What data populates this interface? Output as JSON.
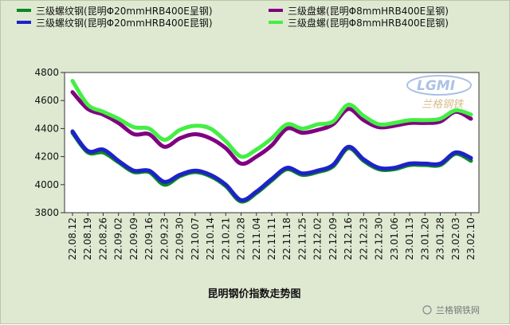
{
  "chart_data": {
    "type": "line",
    "title": "昆明钢价指数走势图",
    "ylim": [
      3800,
      4800
    ],
    "yticks": [
      3800,
      4000,
      4200,
      4400,
      4600,
      4800
    ],
    "grid": false,
    "legend_position": "top",
    "categories": [
      "22.08.12",
      "22.08.19",
      "22.08.26",
      "22.09.02",
      "22.09.09",
      "22.09.16",
      "22.09.23",
      "22.09.30",
      "22.10.07",
      "22.10.14",
      "22.10.21",
      "22.10.28",
      "22.11.04",
      "22.11.11",
      "22.11.18",
      "22.11.25",
      "22.12.02",
      "22.12.09",
      "22.12.16",
      "22.12.23",
      "22.12.30",
      "23.01.06",
      "23.01.13",
      "23.01.20",
      "23.01.28",
      "23.02.03",
      "23.02.10"
    ],
    "series": [
      {
        "name": "三级螺纹钢(昆明Φ20mmHRB400E呈钢)",
        "color": "#0a8a1e",
        "values": [
          4370,
          4230,
          4230,
          4160,
          4090,
          4090,
          4000,
          4060,
          4090,
          4060,
          3990,
          3880,
          3940,
          4030,
          4110,
          4070,
          4090,
          4130,
          4260,
          4170,
          4110,
          4110,
          4140,
          4140,
          4140,
          4220,
          4170
        ]
      },
      {
        "name": "三级盘螺(昆明Φ8mmHRB400E呈钢)",
        "color": "#800080",
        "values": [
          4660,
          4540,
          4500,
          4440,
          4360,
          4360,
          4270,
          4330,
          4360,
          4330,
          4260,
          4150,
          4200,
          4280,
          4400,
          4370,
          4390,
          4430,
          4540,
          4460,
          4410,
          4420,
          4440,
          4440,
          4450,
          4520,
          4470
        ]
      },
      {
        "name": "三级螺纹钢(昆明Φ20mmHRB400E昆钢)",
        "color": "#1e22c8",
        "values": [
          4380,
          4240,
          4250,
          4170,
          4100,
          4100,
          4020,
          4070,
          4100,
          4070,
          4000,
          3890,
          3950,
          4040,
          4120,
          4080,
          4100,
          4140,
          4270,
          4180,
          4120,
          4120,
          4150,
          4150,
          4150,
          4230,
          4190
        ]
      },
      {
        "name": "三级盘螺(昆明Φ8mmHRB400E昆钢)",
        "color": "#44ee44",
        "values": [
          4740,
          4570,
          4520,
          4470,
          4410,
          4400,
          4320,
          4390,
          4420,
          4400,
          4310,
          4200,
          4250,
          4330,
          4430,
          4400,
          4430,
          4450,
          4570,
          4490,
          4430,
          4440,
          4460,
          4460,
          4470,
          4530,
          4500
        ]
      }
    ]
  },
  "watermark": {
    "logo_text": "LGMI",
    "logo_sub": "兰格钢铁",
    "credit": "兰格钢铁网"
  }
}
